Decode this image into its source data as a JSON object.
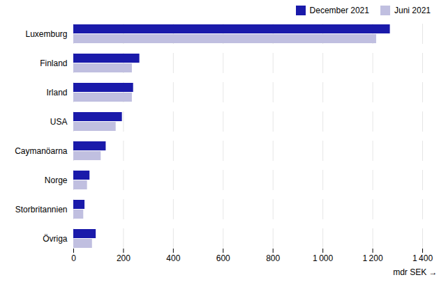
{
  "chart_data": {
    "type": "bar",
    "orientation": "horizontal",
    "categories": [
      "Luxemburg",
      "Finland",
      "Irland",
      "USA",
      "Caymanöarna",
      "Norge",
      "Storbritannien",
      "Övriga"
    ],
    "series": [
      {
        "name": "December 2021",
        "color": "#1a1aaa",
        "values": [
          1270,
          265,
          240,
          195,
          130,
          65,
          45,
          90
        ]
      },
      {
        "name": "Juni 2021",
        "color": "#c0bfe0",
        "values": [
          1215,
          235,
          235,
          170,
          110,
          55,
          40,
          75
        ]
      }
    ],
    "xlabel": "mdr SEK",
    "xlim": [
      0,
      1400
    ],
    "xticks": [
      0,
      200,
      400,
      600,
      800,
      {
        "value": 1000,
        "label": "1 000"
      },
      {
        "value": 1200,
        "label": "1 200"
      },
      {
        "value": 1400,
        "label": "1 400"
      }
    ],
    "grid": true,
    "legend": "upper right"
  }
}
